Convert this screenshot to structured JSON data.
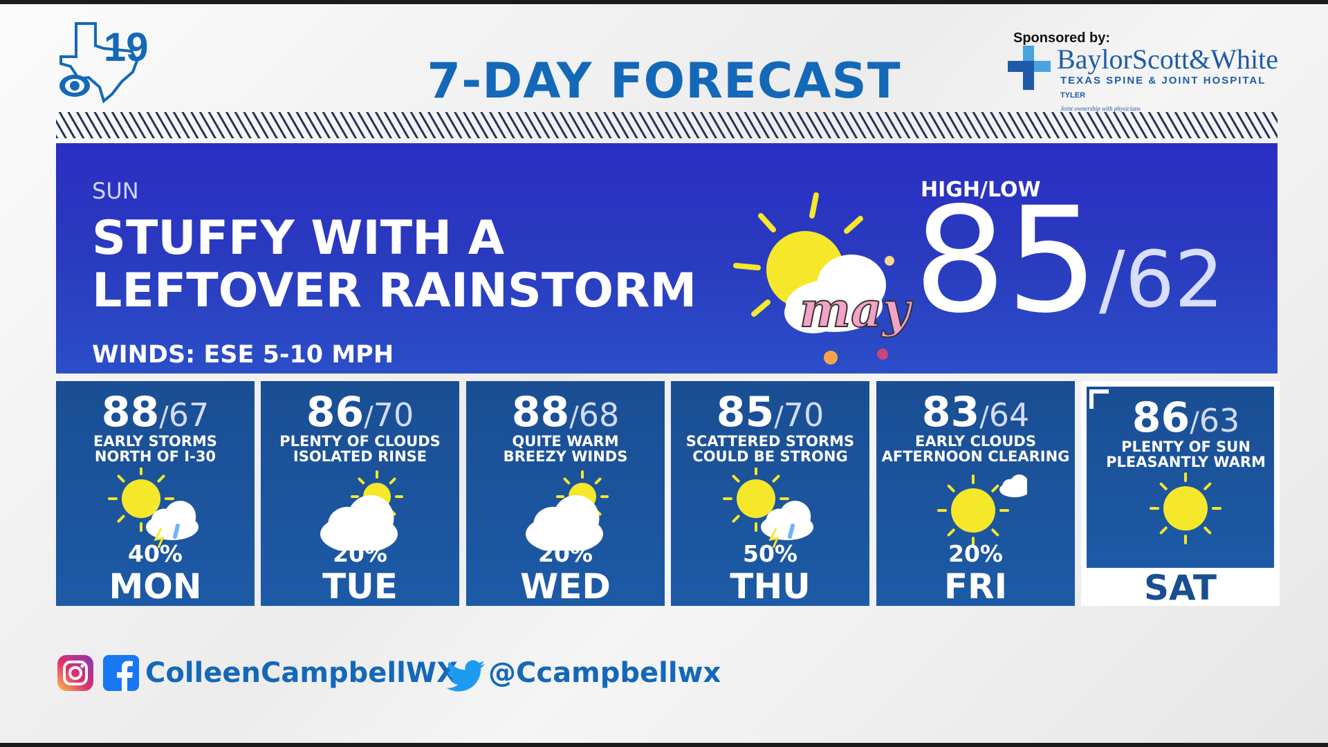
{
  "header": {
    "station_number": "19",
    "title": "7-DAY FORECAST"
  },
  "sponsor": {
    "label": "Sponsored by:",
    "brand": "BaylorScott&White",
    "hospital": "TEXAS SPINE & JOINT HOSPITAL",
    "city": "TYLER",
    "tagline": "Joint ownership with physicians"
  },
  "today": {
    "day": "SUN",
    "headline_line1": "STUFFY WITH A",
    "headline_line2": "LEFTOVER RAINSTORM",
    "winds": "WINDS: ESE 5-10 MPH",
    "highlow_label": "HIGH/LOW",
    "high": "85",
    "low": "/62",
    "icon": "partly-cloudy-icon",
    "sticker": "may"
  },
  "days": [
    {
      "day": "MON",
      "high": "88",
      "low": "67",
      "line1": "EARLY STORMS",
      "line2": "NORTH OF I-30",
      "pct": "40%",
      "icon": "sun-storm"
    },
    {
      "day": "TUE",
      "high": "86",
      "low": "70",
      "line1": "PLENTY OF CLOUDS",
      "line2": "ISOLATED RINSE",
      "pct": "20%",
      "icon": "mostly-cloudy"
    },
    {
      "day": "WED",
      "high": "88",
      "low": "68",
      "line1": "QUITE WARM",
      "line2": "BREEZY WINDS",
      "pct": "20%",
      "icon": "mostly-cloudy"
    },
    {
      "day": "THU",
      "high": "85",
      "low": "70",
      "line1": "SCATTERED STORMS",
      "line2": "COULD BE STRONG",
      "pct": "50%",
      "icon": "sun-storm"
    },
    {
      "day": "FRI",
      "high": "83",
      "low": "64",
      "line1": "EARLY CLOUDS",
      "line2": "AFTERNOON CLEARING",
      "pct": "20%",
      "icon": "sun-small-cloud"
    },
    {
      "day": "SAT",
      "high": "86",
      "low": "63",
      "line1": "PLENTY OF SUN",
      "line2": "PLEASANTLY WARM",
      "pct": "",
      "icon": "sunny"
    }
  ],
  "social": {
    "handle1": "ColleenCampbellWX",
    "handle2": "@Ccampbellwx"
  },
  "colors": {
    "title_blue": "#1468b8",
    "main_panel": "#2b3bc2",
    "card_blue": "#1b54a0",
    "sun_yellow": "#f5e82a"
  }
}
